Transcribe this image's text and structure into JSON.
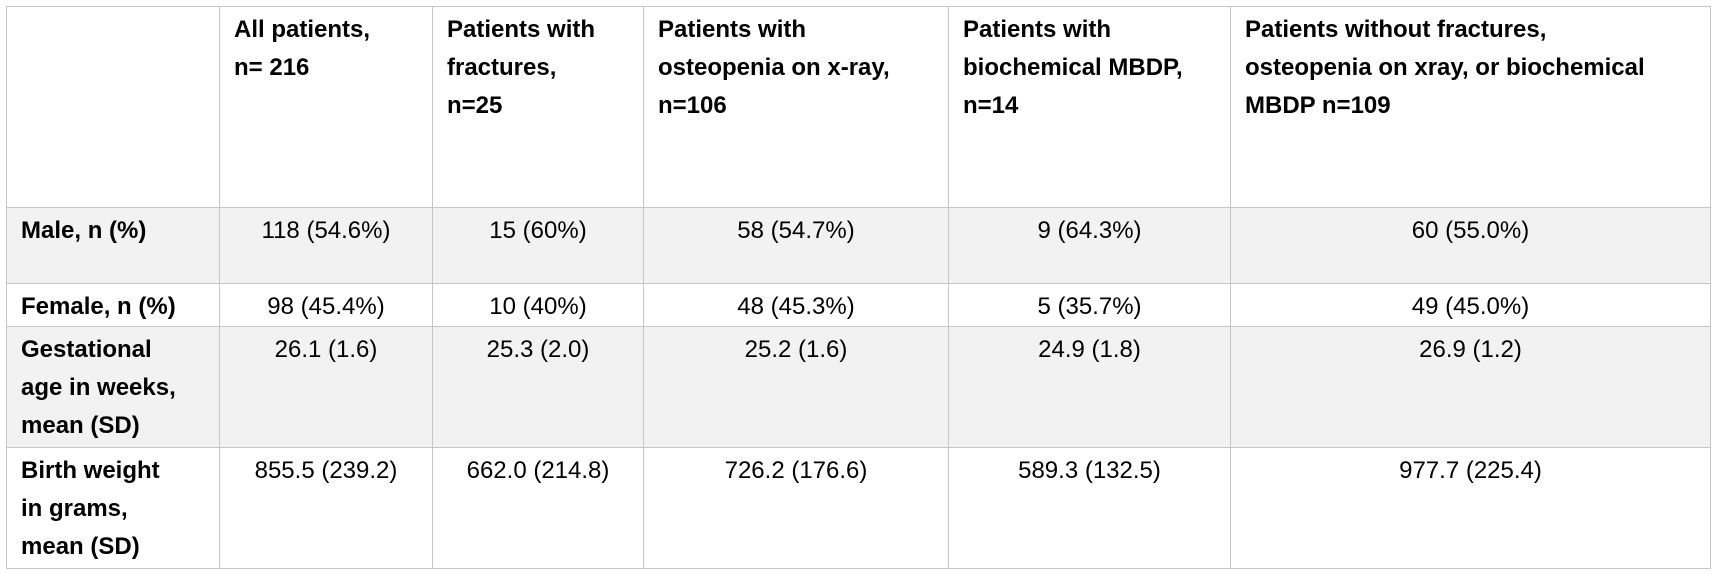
{
  "table": {
    "headers": [
      "",
      [
        "All patients,",
        "n= 216"
      ],
      [
        "Patients with",
        "fractures,",
        "n=25"
      ],
      [
        "Patients with",
        "osteopenia on x-ray,",
        "n=106"
      ],
      [
        "Patients with",
        "biochemical MBDP,",
        "n=14"
      ],
      [
        "Patients without fractures,",
        "osteopenia on xray, or biochemical",
        "MBDP n=109"
      ]
    ],
    "rows": [
      {
        "label": [
          "Male, n (%)"
        ],
        "values": [
          "118 (54.6%)",
          "15 (60%)",
          "58 (54.7%)",
          "9 (64.3%)",
          "60 (55.0%)"
        ],
        "shaded": true
      },
      {
        "label": [
          "Female, n (%)"
        ],
        "values": [
          "98 (45.4%)",
          "10 (40%)",
          "48 (45.3%)",
          "5 (35.7%)",
          "49 (45.0%)"
        ],
        "shaded": false
      },
      {
        "label": [
          "Gestational",
          "age in weeks,",
          "mean (SD)"
        ],
        "values": [
          "26.1 (1.6)",
          "25.3 (2.0)",
          "25.2 (1.6)",
          "24.9 (1.8)",
          "26.9 (1.2)"
        ],
        "shaded": true
      },
      {
        "label": [
          "Birth weight",
          "in grams,",
          "mean (SD)"
        ],
        "values": [
          "855.5 (239.2)",
          "662.0 (214.8)",
          "726.2 (176.6)",
          "589.3 (132.5)",
          "977.7 (225.4)"
        ],
        "shaded": false
      }
    ]
  }
}
